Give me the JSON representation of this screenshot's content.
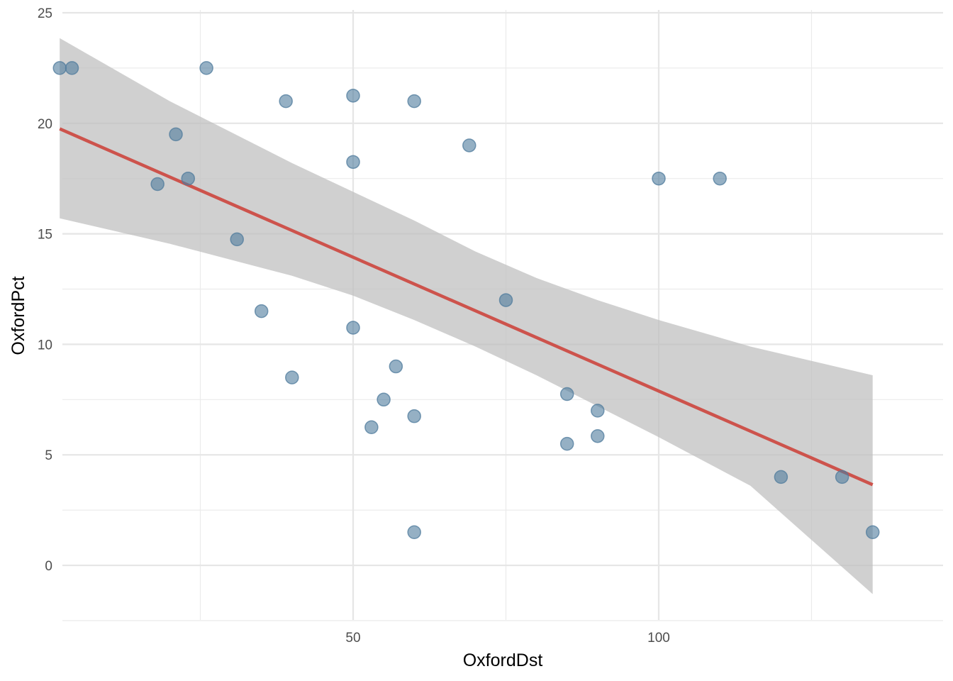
{
  "chart_data": {
    "type": "scatter",
    "title": "",
    "xlabel": "OxfordDst",
    "ylabel": "OxfordPct",
    "xlim": [
      -5,
      135
    ],
    "ylim": [
      -2.5,
      25
    ],
    "x_ticks": [
      50,
      100
    ],
    "y_ticks": [
      0,
      5,
      10,
      15,
      20,
      25
    ],
    "grid": true,
    "legend": "none",
    "colors": {
      "points": "#4f7b9c",
      "trend_line": "#cd534c",
      "confidence_band": "#bebebe",
      "grid": "#ebebeb"
    },
    "points": [
      {
        "x": 2,
        "y": 22.5
      },
      {
        "x": 4,
        "y": 22.5
      },
      {
        "x": 18,
        "y": 17.25
      },
      {
        "x": 21,
        "y": 19.5
      },
      {
        "x": 23,
        "y": 17.5
      },
      {
        "x": 26,
        "y": 22.5
      },
      {
        "x": 31,
        "y": 14.75
      },
      {
        "x": 35,
        "y": 11.5
      },
      {
        "x": 39,
        "y": 21
      },
      {
        "x": 40,
        "y": 8.5
      },
      {
        "x": 50,
        "y": 21.25
      },
      {
        "x": 50,
        "y": 18.25
      },
      {
        "x": 50,
        "y": 10.75
      },
      {
        "x": 53,
        "y": 6.25
      },
      {
        "x": 55,
        "y": 7.5
      },
      {
        "x": 57,
        "y": 9
      },
      {
        "x": 60,
        "y": 21
      },
      {
        "x": 60,
        "y": 6.75
      },
      {
        "x": 60,
        "y": 1.5
      },
      {
        "x": 69,
        "y": 19
      },
      {
        "x": 75,
        "y": 12
      },
      {
        "x": 85,
        "y": 7.75
      },
      {
        "x": 85,
        "y": 5.5
      },
      {
        "x": 90,
        "y": 7
      },
      {
        "x": 90,
        "y": 5.85
      },
      {
        "x": 100,
        "y": 17.5
      },
      {
        "x": 110,
        "y": 17.5
      },
      {
        "x": 120,
        "y": 4
      },
      {
        "x": 130,
        "y": 4
      },
      {
        "x": 135,
        "y": 1.5
      }
    ],
    "trend_line": {
      "x": [
        2,
        135
      ],
      "y": [
        19.75,
        3.65
      ]
    },
    "confidence_band": [
      {
        "x": 2,
        "lower": 15.7,
        "upper": 23.85
      },
      {
        "x": 20,
        "lower": 14.55,
        "upper": 21.0
      },
      {
        "x": 40,
        "lower": 13.1,
        "upper": 18.2
      },
      {
        "x": 50,
        "lower": 12.2,
        "upper": 16.9
      },
      {
        "x": 60,
        "lower": 11.1,
        "upper": 15.6
      },
      {
        "x": 70,
        "lower": 9.9,
        "upper": 14.2
      },
      {
        "x": 80,
        "lower": 8.6,
        "upper": 13.0
      },
      {
        "x": 90,
        "lower": 7.2,
        "upper": 12.0
      },
      {
        "x": 100,
        "lower": 5.8,
        "upper": 11.1
      },
      {
        "x": 115,
        "lower": 3.6,
        "upper": 9.9
      },
      {
        "x": 135,
        "lower": -1.3,
        "upper": 8.6
      }
    ]
  }
}
